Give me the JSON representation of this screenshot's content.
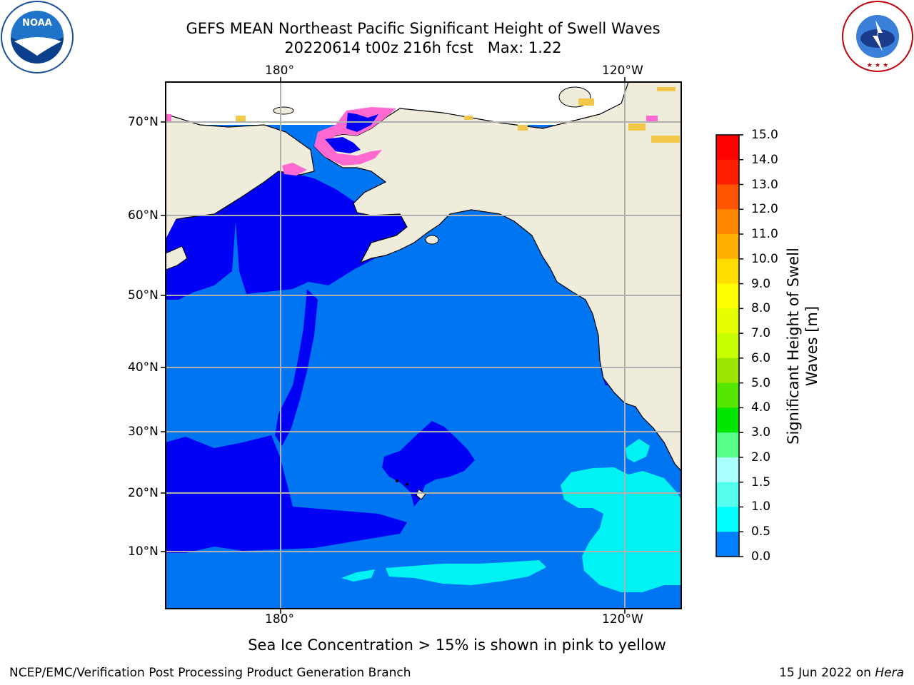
{
  "header": {
    "title_line1": "GEFS MEAN Northeast Pacific Significant Height of Swell Waves",
    "title_line2": "20220614 t00z 216h fcst   Max: 1.22"
  },
  "logos": {
    "left": "NOAA",
    "right": "NATIONAL WEATHER SERVICE"
  },
  "map": {
    "lon_labels": [
      "180°",
      "120°W"
    ],
    "lat_labels": [
      "70°N",
      "60°N",
      "50°N",
      "40°N",
      "30°N",
      "20°N",
      "10°N"
    ],
    "colors": {
      "land": "#efecdc",
      "ocean_low": "#0000f2",
      "ocean_mid": "#0075f2",
      "ocean_high": "#00f2f2",
      "ice_pink": "#ff69d0",
      "ice_yellow": "#f2c84b"
    }
  },
  "colorbar": {
    "label": "Significant Height of Swell Waves [m]",
    "ticks": [
      "15.0",
      "14.0",
      "13.0",
      "12.0",
      "11.0",
      "10.0",
      "9.0",
      "8.0",
      "7.0",
      "6.0",
      "5.0",
      "4.0",
      "3.0",
      "2.0",
      "1.5",
      "1.0",
      "0.5",
      "0.0"
    ],
    "colors": [
      "#ff0000",
      "#ff2000",
      "#ff5500",
      "#ff8800",
      "#ffb000",
      "#ffdd00",
      "#ffff00",
      "#e5ff00",
      "#c8ff00",
      "#9be600",
      "#55e600",
      "#00e600",
      "#55ff88",
      "#aaffff",
      "#55ffee",
      "#00ffff",
      "#0080ff",
      "#0000ff"
    ]
  },
  "footnote": "Sea Ice Concentration > 15% is shown in pink to yellow",
  "footer": {
    "left": "NCEP/EMC/Verification Post Processing Product Generation Branch",
    "right_prefix": "15 Jun 2022 on ",
    "right_host": "Hera"
  }
}
